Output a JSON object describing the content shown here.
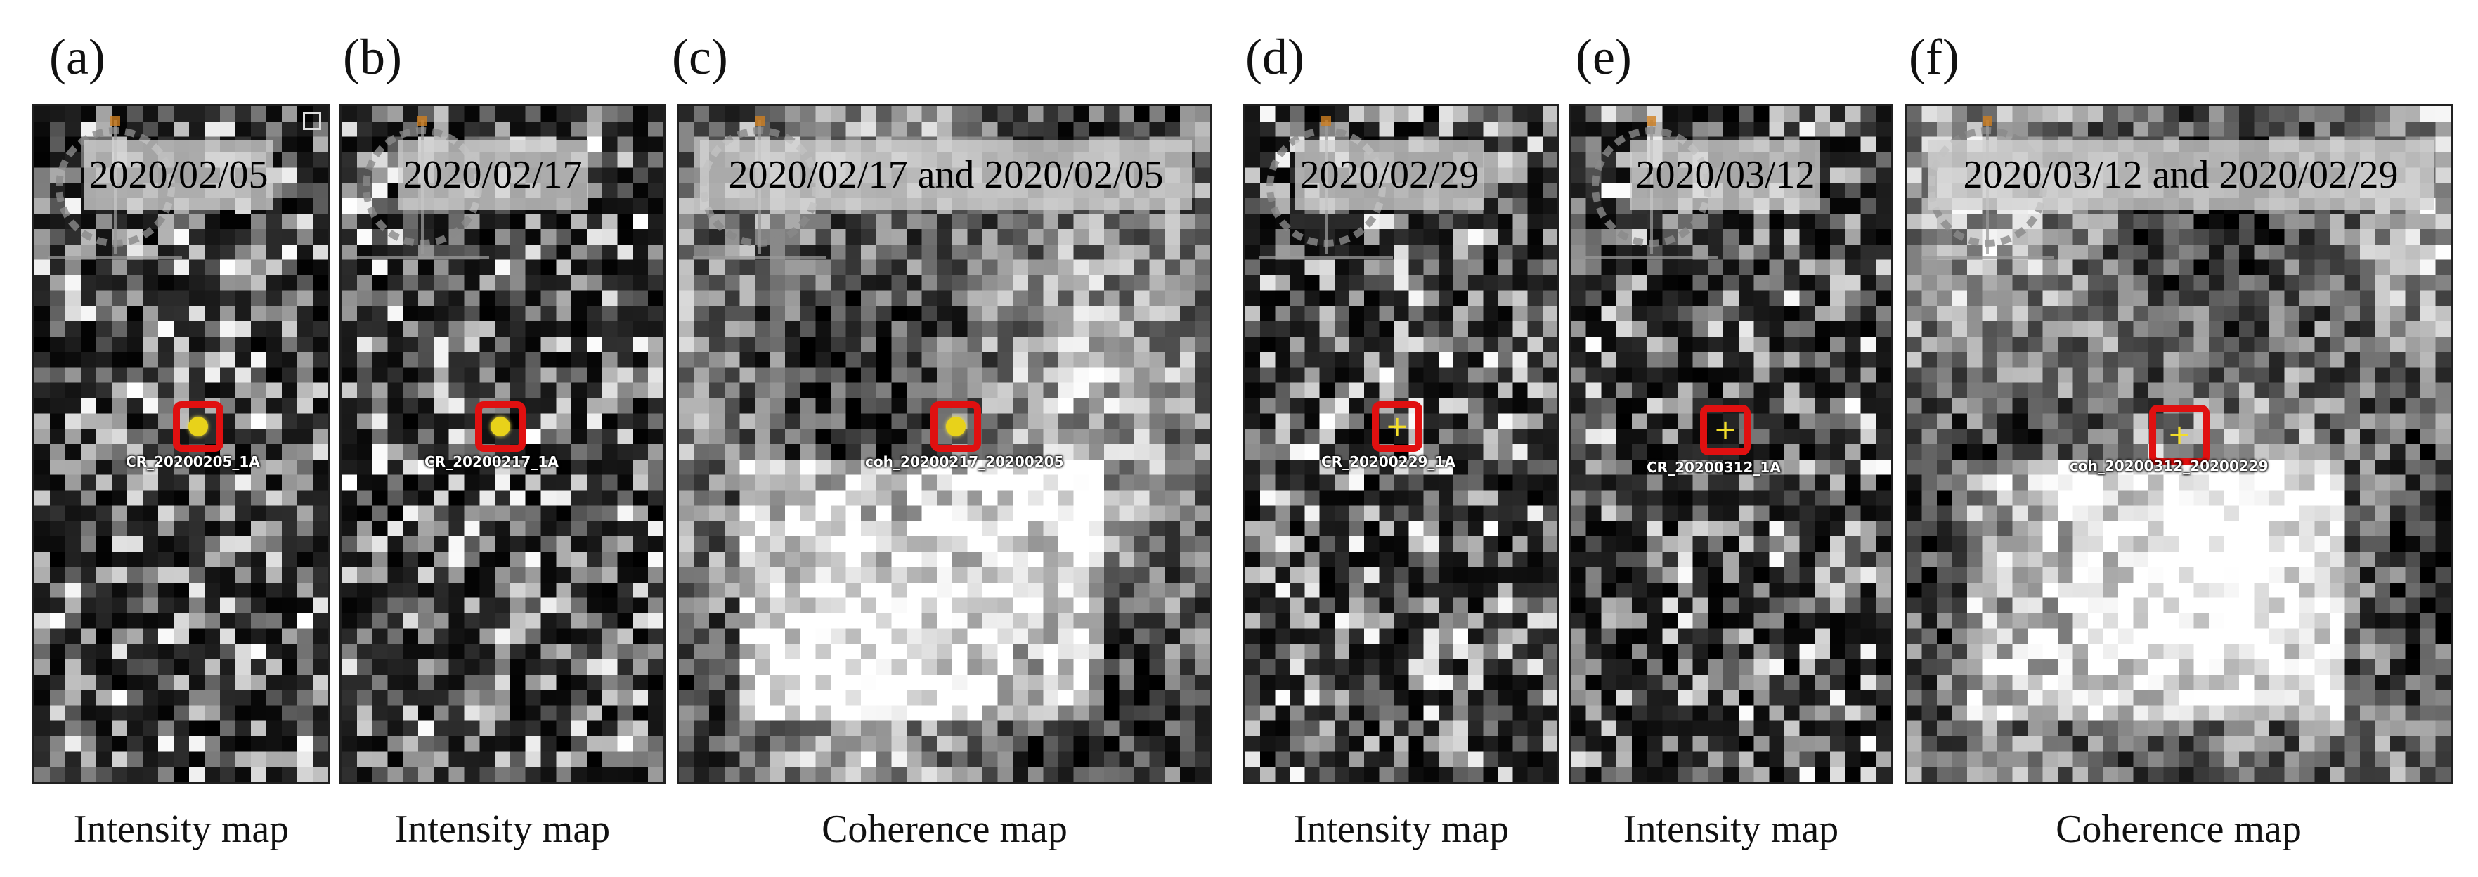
{
  "figure": {
    "panels": [
      {
        "id": "a",
        "letter": "(a)",
        "date_label": "2020/02/05",
        "point_label": "CR_20200205_1A",
        "caption": "Intensity map",
        "type": "intensity",
        "target": "dot",
        "compass": true,
        "square_icon": true
      },
      {
        "id": "b",
        "letter": "(b)",
        "date_label": "2020/02/17",
        "point_label": "CR_20200217_1A",
        "caption": "Intensity map",
        "type": "intensity",
        "target": "dot",
        "compass": true,
        "square_icon": false
      },
      {
        "id": "c",
        "letter": "(c)",
        "date_label": "2020/02/17 and 2020/02/05",
        "point_label": "coh_20200217_20200205",
        "caption": "Coherence map",
        "type": "coherence",
        "target": "dot",
        "compass": true,
        "square_icon": false
      },
      {
        "id": "d",
        "letter": "(d)",
        "date_label": "2020/02/29",
        "point_label": "CR_20200229_1A",
        "caption": "Intensity map",
        "type": "intensity",
        "target": "cross",
        "compass": true,
        "square_icon": false
      },
      {
        "id": "e",
        "letter": "(e)",
        "date_label": "2020/03/12",
        "point_label": "CR_20200312_1A",
        "caption": "Intensity map",
        "type": "intensity",
        "target": "cross",
        "compass": true,
        "square_icon": false
      },
      {
        "id": "f",
        "letter": "(f)",
        "date_label": "2020/03/12 and 2020/02/29",
        "point_label": "coh_20200312_20200229",
        "caption": "Coherence map",
        "type": "coherence",
        "target": "cross",
        "compass": true,
        "square_icon": false
      }
    ],
    "colors": {
      "marker": "#e01010",
      "target": "#e8d21a",
      "label_box": "#d2d2d2"
    },
    "icons": [
      "compass-icon",
      "square-icon"
    ]
  }
}
